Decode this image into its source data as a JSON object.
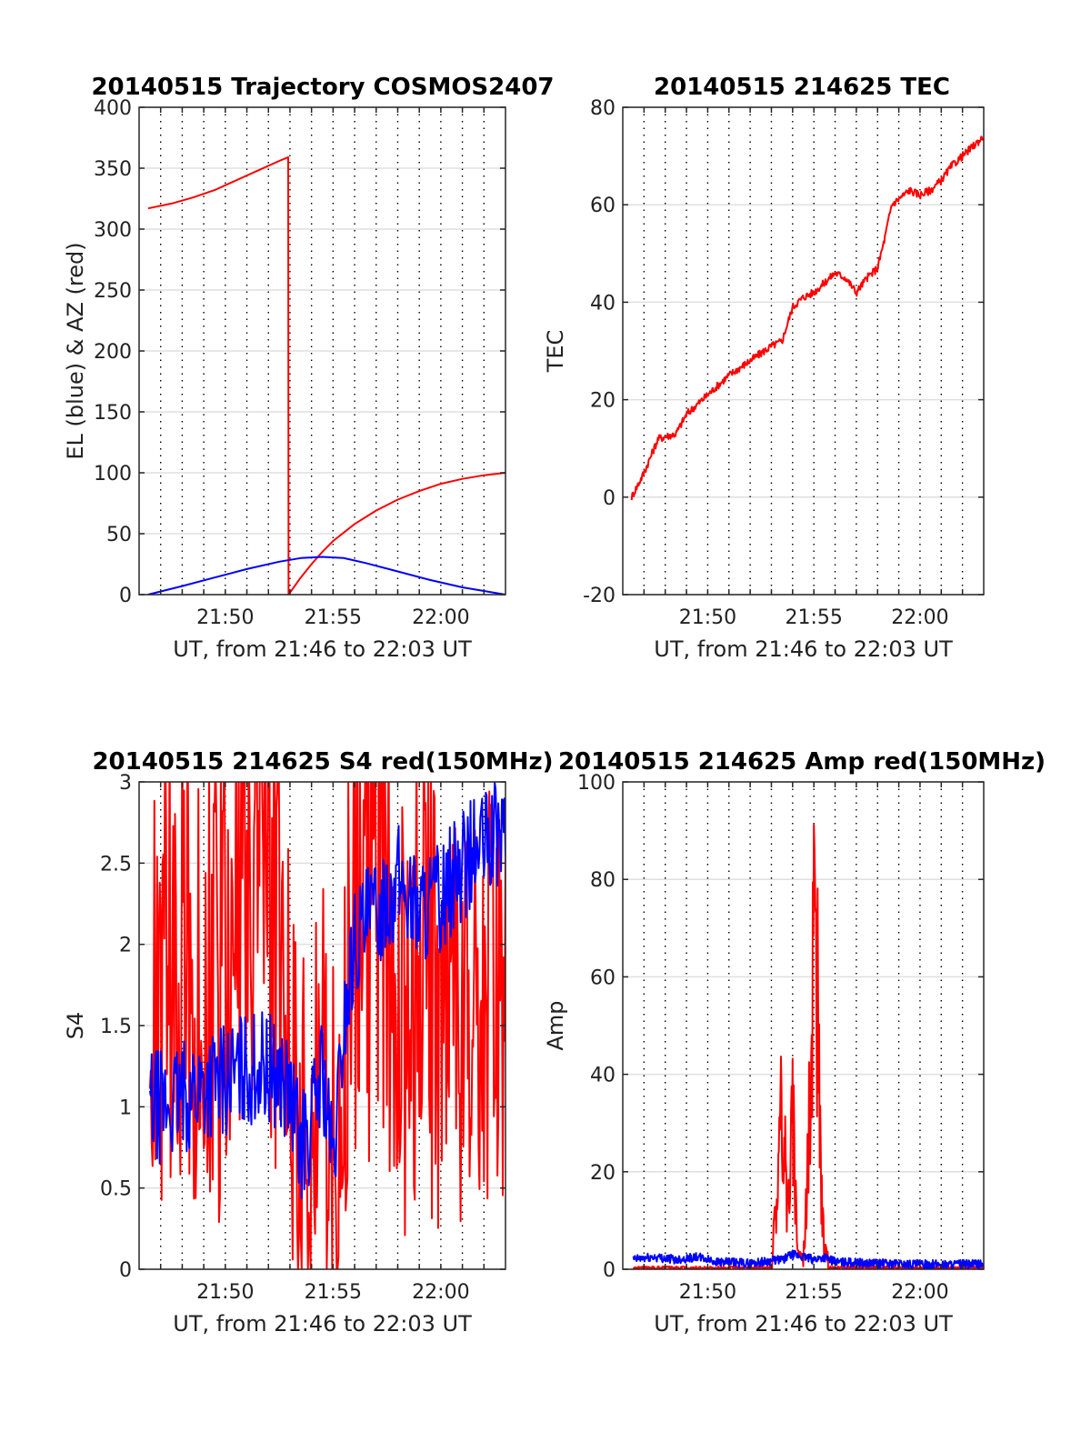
{
  "colors": {
    "red": "#ff0000",
    "blue": "#0000ff",
    "axis": "#262626",
    "grid_major": "#dfdfdf",
    "grid_minor": "#000000"
  },
  "chart_data": [
    {
      "id": "trajectory",
      "type": "line",
      "title": "20140515 Trajectory COSMOS2407",
      "xlabel": "UT, from 21:46 to 22:03 UT",
      "ylabel": "EL (blue) & AZ (red)",
      "xlim": [
        "21:46",
        "22:03"
      ],
      "ylim": [
        0,
        400
      ],
      "yticks": [
        0,
        50,
        100,
        150,
        200,
        250,
        300,
        350,
        400
      ],
      "xticks": [
        "21:50",
        "21:55",
        "22:00"
      ],
      "grid": "major horizontal + dotted minute verticals",
      "series": [
        {
          "name": "AZ",
          "color": "red",
          "x": [
            "21:46:25",
            "21:47:30",
            "21:48:30",
            "21:49:30",
            "21:50:30",
            "21:51:30",
            "21:52:30",
            "21:52:55",
            "21:52:56",
            "21:53:30",
            "21:54:00",
            "21:54:30",
            "21:55:00",
            "21:56:00",
            "21:57:00",
            "21:58:00",
            "21:59:00",
            "22:00:00",
            "22:01:00",
            "22:02:00",
            "22:03:00"
          ],
          "y": [
            317,
            321,
            326,
            332,
            340,
            348,
            356,
            359,
            0,
            14,
            25,
            35,
            44,
            58,
            69,
            78,
            85,
            91,
            95,
            98,
            100
          ]
        },
        {
          "name": "EL",
          "color": "blue",
          "x": [
            "21:46:25",
            "21:48:00",
            "21:49:30",
            "21:51:00",
            "21:52:30",
            "21:53:30",
            "21:54:30",
            "21:55:30",
            "21:56:30",
            "21:58:00",
            "21:59:30",
            "22:01:00",
            "22:02:00",
            "22:03:00"
          ],
          "y": [
            0,
            7,
            14,
            21,
            27,
            30,
            31,
            30,
            26,
            19,
            12,
            6,
            3,
            0
          ]
        }
      ]
    },
    {
      "id": "tec",
      "type": "line",
      "title": "20140515 214625 TEC",
      "xlabel": "UT, from 21:46 to 22:03 UT",
      "ylabel": "TEC",
      "xlim": [
        "21:46",
        "22:03"
      ],
      "ylim": [
        -20,
        80
      ],
      "yticks": [
        -20,
        0,
        20,
        40,
        60,
        80
      ],
      "xticks": [
        "21:50",
        "21:55",
        "22:00"
      ],
      "grid": "major horizontal + dotted minute verticals",
      "series": [
        {
          "name": "TEC",
          "color": "red",
          "x": [
            "21:46:25",
            "21:47:00",
            "21:47:40",
            "21:48:30",
            "21:49:00",
            "21:50:00",
            "21:51:00",
            "21:52:00",
            "21:53:00",
            "21:53:30",
            "21:54:00",
            "21:54:30",
            "21:55:00",
            "21:55:30",
            "21:56:00",
            "21:56:30",
            "21:57:00",
            "21:57:30",
            "21:58:00",
            "21:58:20",
            "21:58:40",
            "21:59:30",
            "22:00:00",
            "22:00:30",
            "22:01:00",
            "22:01:30",
            "22:02:00",
            "22:02:30",
            "22:03:00"
          ],
          "y": [
            0,
            5,
            12,
            13,
            17,
            21,
            25,
            28,
            31,
            32,
            39,
            41,
            42,
            44,
            46,
            45,
            42,
            45,
            47,
            53,
            60,
            63,
            62,
            63,
            65,
            68,
            70,
            72,
            74
          ]
        }
      ]
    },
    {
      "id": "s4",
      "type": "line",
      "title": "20140515 214625 S4 red(150MHz)",
      "xlabel": "UT, from 21:46 to 22:03 UT",
      "ylabel": "S4",
      "xlim": [
        "21:46",
        "22:03"
      ],
      "ylim": [
        0,
        3
      ],
      "yticks": [
        0,
        0.5,
        1,
        1.5,
        2,
        2.5,
        3
      ],
      "xticks": [
        "21:50",
        "21:55",
        "22:00"
      ],
      "grid": "major horizontal + dotted minute verticals",
      "series": [
        {
          "name": "S4 red",
          "color": "red",
          "x": [
            "21:46:30",
            "21:47:30",
            "21:48:30",
            "21:49:30",
            "21:50:30",
            "21:51:30",
            "21:52:30",
            "21:53:00",
            "21:53:30",
            "21:54:00",
            "21:54:30",
            "21:55:00",
            "21:55:20",
            "21:55:40",
            "21:56:00",
            "21:57:00",
            "21:58:00",
            "21:59:00",
            "22:00:00",
            "22:01:00",
            "22:02:00",
            "22:03:00"
          ],
          "y": [
            1.5,
            2.0,
            1.8,
            1.6,
            2.0,
            2.5,
            1.8,
            1.2,
            0.6,
            0.4,
            1.2,
            0.6,
            0.3,
            1.5,
            2.5,
            2.2,
            1.5,
            1.8,
            1.6,
            1.4,
            1.5,
            1.5
          ]
        },
        {
          "name": "S4 blue",
          "color": "blue",
          "x": [
            "21:46:30",
            "21:47:30",
            "21:48:30",
            "21:49:30",
            "21:50:30",
            "21:51:30",
            "21:52:30",
            "21:53:00",
            "21:53:30",
            "21:54:00",
            "21:54:30",
            "21:55:00",
            "21:55:30",
            "21:56:00",
            "21:57:00",
            "21:58:00",
            "21:59:00",
            "22:00:00",
            "22:01:00",
            "22:02:00",
            "22:03:00"
          ],
          "y": [
            1.0,
            1.0,
            1.1,
            1.15,
            1.2,
            1.25,
            1.2,
            1.05,
            0.75,
            0.9,
            1.25,
            0.6,
            1.5,
            2.0,
            2.2,
            2.4,
            2.2,
            2.3,
            2.5,
            2.6,
            2.7
          ]
        }
      ]
    },
    {
      "id": "amp",
      "type": "line",
      "title": "20140515 214625 Amp red(150MHz)",
      "xlabel": "UT, from 21:46 to 22:03 UT",
      "ylabel": "Amp",
      "xlim": [
        "21:46",
        "22:03"
      ],
      "ylim": [
        0,
        100
      ],
      "yticks": [
        0,
        20,
        40,
        60,
        80,
        100
      ],
      "xticks": [
        "21:50",
        "21:55",
        "22:00"
      ],
      "grid": "major horizontal + dotted minute verticals",
      "series": [
        {
          "name": "Amp red",
          "color": "red",
          "x": [
            "21:46:30",
            "21:53:00",
            "21:53:15",
            "21:53:30",
            "21:53:45",
            "21:54:00",
            "21:54:15",
            "21:54:30",
            "21:54:45",
            "21:55:00",
            "21:55:10",
            "21:55:20",
            "21:55:30",
            "21:55:45",
            "21:56:00",
            "22:03:00"
          ],
          "y": [
            0,
            0,
            20,
            44,
            15,
            40,
            5,
            3,
            30,
            95,
            70,
            20,
            5,
            2,
            0,
            0
          ]
        },
        {
          "name": "Amp blue",
          "color": "blue",
          "x": [
            "21:46:30",
            "21:47:30",
            "21:48:30",
            "21:49:30",
            "21:50:30",
            "21:52:00",
            "21:53:30",
            "21:54:00",
            "21:55:00",
            "21:55:30",
            "21:56:00",
            "21:58:00",
            "22:00:00",
            "22:03:00"
          ],
          "y": [
            2,
            2.5,
            2,
            2.5,
            1.5,
            1.2,
            2,
            3,
            2,
            2.5,
            1.5,
            1.2,
            1.0,
            1.0
          ]
        }
      ]
    }
  ]
}
